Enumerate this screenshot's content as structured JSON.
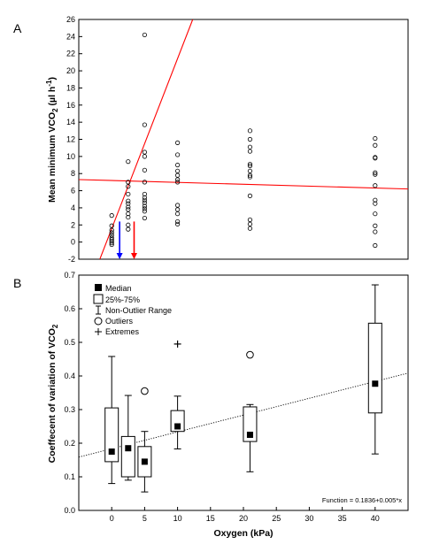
{
  "chart_data": [
    {
      "panel": "A",
      "type": "scatter",
      "ylabel": "Mean minimum VCO2 (µl h-1)",
      "ylabel_parts": {
        "main": "Mean minimum VCO",
        "sub": "2",
        "unit_open": " (µl h",
        "sup": "-1",
        "unit_close": ")"
      },
      "xlim": [
        -5,
        45
      ],
      "ylim": [
        -2,
        26
      ],
      "yticks": [
        -2,
        0,
        2,
        4,
        6,
        8,
        10,
        12,
        14,
        16,
        18,
        20,
        22,
        24,
        26
      ],
      "grid": false,
      "colors": {
        "points": "#000000",
        "lines": "#ff0000",
        "blue_arrow": "#0000ff",
        "red_arrow": "#ff0000"
      },
      "points": [
        {
          "x": 0,
          "y": 3.1
        },
        {
          "x": 0,
          "y": 1.9
        },
        {
          "x": 0,
          "y": 1.4
        },
        {
          "x": 0,
          "y": 1.1
        },
        {
          "x": 0,
          "y": 0.8
        },
        {
          "x": 0,
          "y": 0.5
        },
        {
          "x": 0,
          "y": 0.3
        },
        {
          "x": 0,
          "y": 0.1
        },
        {
          "x": 0,
          "y": -0.1
        },
        {
          "x": 0,
          "y": -0.3
        },
        {
          "x": 2.5,
          "y": 9.4
        },
        {
          "x": 2.5,
          "y": 7.0
        },
        {
          "x": 2.5,
          "y": 6.5
        },
        {
          "x": 2.5,
          "y": 5.6
        },
        {
          "x": 2.5,
          "y": 4.8
        },
        {
          "x": 2.5,
          "y": 4.5
        },
        {
          "x": 2.5,
          "y": 4.1
        },
        {
          "x": 2.5,
          "y": 3.8
        },
        {
          "x": 2.5,
          "y": 3.3
        },
        {
          "x": 2.5,
          "y": 2.9
        },
        {
          "x": 2.5,
          "y": 2.0
        },
        {
          "x": 2.5,
          "y": 1.5
        },
        {
          "x": 5,
          "y": 24.2
        },
        {
          "x": 5,
          "y": 13.7
        },
        {
          "x": 5,
          "y": 10.5
        },
        {
          "x": 5,
          "y": 10.0
        },
        {
          "x": 5,
          "y": 8.4
        },
        {
          "x": 5,
          "y": 7.0
        },
        {
          "x": 5,
          "y": 5.6
        },
        {
          "x": 5,
          "y": 5.2
        },
        {
          "x": 5,
          "y": 4.9
        },
        {
          "x": 5,
          "y": 4.6
        },
        {
          "x": 5,
          "y": 4.2
        },
        {
          "x": 5,
          "y": 3.9
        },
        {
          "x": 5,
          "y": 3.6
        },
        {
          "x": 5,
          "y": 2.8
        },
        {
          "x": 10,
          "y": 11.6
        },
        {
          "x": 10,
          "y": 10.2
        },
        {
          "x": 10,
          "y": 9.0
        },
        {
          "x": 10,
          "y": 8.3
        },
        {
          "x": 10,
          "y": 7.8
        },
        {
          "x": 10,
          "y": 7.3
        },
        {
          "x": 10,
          "y": 7.0
        },
        {
          "x": 10,
          "y": 4.3
        },
        {
          "x": 10,
          "y": 3.8
        },
        {
          "x": 10,
          "y": 3.3
        },
        {
          "x": 10,
          "y": 2.4
        },
        {
          "x": 10,
          "y": 2.1
        },
        {
          "x": 21,
          "y": 13.0
        },
        {
          "x": 21,
          "y": 12.0
        },
        {
          "x": 21,
          "y": 11.1
        },
        {
          "x": 21,
          "y": 10.6
        },
        {
          "x": 21,
          "y": 9.1
        },
        {
          "x": 21,
          "y": 8.9
        },
        {
          "x": 21,
          "y": 8.3
        },
        {
          "x": 21,
          "y": 7.8
        },
        {
          "x": 21,
          "y": 7.6
        },
        {
          "x": 21,
          "y": 5.4
        },
        {
          "x": 21,
          "y": 2.6
        },
        {
          "x": 21,
          "y": 2.1
        },
        {
          "x": 21,
          "y": 1.6
        },
        {
          "x": 40,
          "y": 12.1
        },
        {
          "x": 40,
          "y": 11.3
        },
        {
          "x": 40,
          "y": 9.9
        },
        {
          "x": 40,
          "y": 9.8
        },
        {
          "x": 40,
          "y": 8.1
        },
        {
          "x": 40,
          "y": 7.9
        },
        {
          "x": 40,
          "y": 6.6
        },
        {
          "x": 40,
          "y": 4.9
        },
        {
          "x": 40,
          "y": 4.5
        },
        {
          "x": 40,
          "y": 3.3
        },
        {
          "x": 40,
          "y": 1.9
        },
        {
          "x": 40,
          "y": 1.2
        },
        {
          "x": 40,
          "y": -0.4
        }
      ],
      "lines": [
        {
          "x": [
            -1.8,
            12.3
          ],
          "y": [
            -2,
            26
          ]
        },
        {
          "x": [
            -5,
            45
          ],
          "y": [
            7.3,
            6.2
          ]
        }
      ],
      "arrows": [
        {
          "color": "blue",
          "x": 1.2,
          "y_from": 2.4,
          "y_to": -2
        },
        {
          "color": "red",
          "x": 3.4,
          "y_from": 2.4,
          "y_to": -2
        }
      ]
    },
    {
      "panel": "B",
      "type": "box",
      "ylabel": "Coeffecent of variation of VCO2",
      "ylabel_parts": {
        "main": "Coeffecent of variation of VCO",
        "sub": "2"
      },
      "xlabel": "Oxygen (kPa)",
      "xlim": [
        -5,
        45
      ],
      "ylim": [
        0.0,
        0.7
      ],
      "xticks": [
        0,
        5,
        10,
        15,
        20,
        25,
        30,
        35,
        40
      ],
      "yticks": [
        "0.0",
        "0.1",
        "0.2",
        "0.3",
        "0.4",
        "0.5",
        "0.6",
        "0.7"
      ],
      "grid": false,
      "legend": {
        "position": "top-left",
        "items": [
          "Median",
          "25%-75%",
          "Non-Outlier Range",
          "Outliers",
          "Extremes"
        ]
      },
      "boxes": [
        {
          "x": 0,
          "whisker_low": 0.08,
          "q1": 0.145,
          "median": 0.175,
          "q3": 0.305,
          "whisker_high": 0.458
        },
        {
          "x": 2.5,
          "whisker_low": 0.09,
          "q1": 0.1,
          "median": 0.185,
          "q3": 0.22,
          "whisker_high": 0.342
        },
        {
          "x": 5,
          "whisker_low": 0.055,
          "q1": 0.1,
          "median": 0.145,
          "q3": 0.19,
          "whisker_high": 0.235
        },
        {
          "x": 10,
          "whisker_low": 0.183,
          "q1": 0.235,
          "median": 0.25,
          "q3": 0.297,
          "whisker_high": 0.34
        },
        {
          "x": 21,
          "whisker_low": 0.115,
          "q1": 0.205,
          "median": 0.225,
          "q3": 0.308,
          "whisker_high": 0.315
        },
        {
          "x": 40,
          "whisker_low": 0.168,
          "q1": 0.29,
          "median": 0.377,
          "q3": 0.557,
          "whisker_high": 0.671
        }
      ],
      "outliers": [
        {
          "x": 5,
          "y": 0.355
        },
        {
          "x": 21,
          "y": 0.463
        }
      ],
      "extremes": [
        {
          "x": 10,
          "y": 0.495
        }
      ],
      "fit_line": {
        "intercept": 0.1836,
        "slope": 0.005,
        "style": "dotted"
      },
      "annotation": "Function = 0.1836+0.005*x"
    }
  ]
}
